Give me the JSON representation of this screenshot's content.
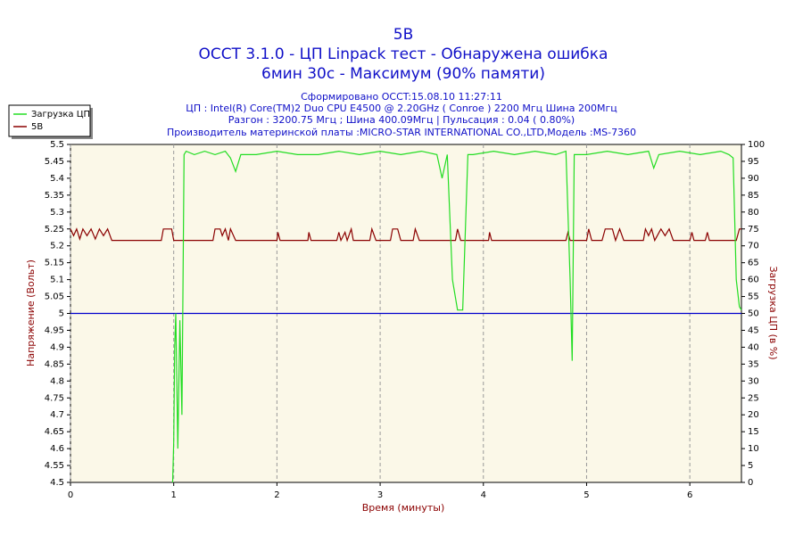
{
  "chart_data": {
    "type": "line",
    "title": "5В",
    "title_lines": [
      "OCCT 3.1.0 - ЦП Linpack тест - Обнаружена ошибка",
      "6мин 30с - Максимум (90% памяти)"
    ],
    "subtitle_lines": [
      "Сформировано OCCT:15.08.10 11:27:11",
      "ЦП : Intel(R) Core(TM)2 Duo CPU E4500 @ 2.20GHz ( Conroe ) 2200 Мгц Шина 200Мгц",
      "Разгон : 3200.75 Мгц ; Шина 400.09Мгц | Пульсация : 0.04 ( 0.80%)",
      "Производитель материнской платы :MICRO-STAR INTERNATIONAL CO.,LTD,Модель :MS-7360"
    ],
    "x_label": "Время (минуты)",
    "y_label": "Напряжение (Вольт)",
    "y2_label": "Загрузка ЦП (в %)",
    "xlim": [
      0,
      6.5
    ],
    "xticks": [
      0,
      1,
      2,
      3,
      4,
      5,
      6
    ],
    "ylim": [
      4.5,
      5.5
    ],
    "yticks": [
      4.5,
      4.55,
      4.6,
      4.65,
      4.7,
      4.75,
      4.8,
      4.85,
      4.9,
      4.95,
      5,
      5.05,
      5.1,
      5.15,
      5.2,
      5.25,
      5.3,
      5.35,
      5.4,
      5.45,
      5.5
    ],
    "y2lim": [
      0,
      100
    ],
    "y2ticks": [
      0,
      5,
      10,
      15,
      20,
      25,
      30,
      35,
      40,
      45,
      50,
      55,
      60,
      65,
      70,
      75,
      80,
      85,
      90,
      95,
      100
    ],
    "grid": "x",
    "legend": "top-left",
    "series": [
      {
        "name": "Загрузка ЦП",
        "color": "#22dd22",
        "axis": "y2",
        "x": [
          0.99,
          1.0,
          1.01,
          1.02,
          1.04,
          1.06,
          1.08,
          1.1,
          1.12,
          1.2,
          1.3,
          1.4,
          1.5,
          1.55,
          1.6,
          1.65,
          1.8,
          2.0,
          2.2,
          2.4,
          2.6,
          2.8,
          3.0,
          3.2,
          3.4,
          3.55,
          3.6,
          3.65,
          3.7,
          3.75,
          3.8,
          3.85,
          3.9,
          4.1,
          4.3,
          4.5,
          4.7,
          4.8,
          4.84,
          4.86,
          4.88,
          4.92,
          5.0,
          5.2,
          5.4,
          5.6,
          5.65,
          5.7,
          5.9,
          6.1,
          6.3,
          6.38,
          6.42,
          6.45,
          6.48,
          6.5
        ],
        "values": [
          0,
          12,
          40,
          50,
          10,
          48,
          20,
          97,
          98,
          97,
          98,
          97,
          98,
          96,
          92,
          97,
          97,
          98,
          97,
          97,
          98,
          97,
          98,
          97,
          98,
          97,
          90,
          97,
          60,
          51,
          51,
          97,
          97,
          98,
          97,
          98,
          97,
          98,
          60,
          36,
          97,
          97,
          97,
          98,
          97,
          98,
          93,
          97,
          98,
          97,
          98,
          97,
          96,
          60,
          52,
          51
        ]
      },
      {
        "name": "5В",
        "color": "#8b0000",
        "axis": "y",
        "x": [
          0,
          0.03,
          0.06,
          0.09,
          0.12,
          0.16,
          0.2,
          0.24,
          0.28,
          0.32,
          0.36,
          0.4,
          0.88,
          0.9,
          0.98,
          1.0,
          1.38,
          1.4,
          1.45,
          1.47,
          1.5,
          1.53,
          1.55,
          1.6,
          2.0,
          2.01,
          2.03,
          2.3,
          2.31,
          2.33,
          2.58,
          2.6,
          2.62,
          2.66,
          2.68,
          2.72,
          2.74,
          2.9,
          2.92,
          2.96,
          3.1,
          3.12,
          3.17,
          3.2,
          3.32,
          3.34,
          3.38,
          3.73,
          3.75,
          3.78,
          4.05,
          4.06,
          4.08,
          4.8,
          4.82,
          4.84,
          5.0,
          5.02,
          5.05,
          5.15,
          5.18,
          5.25,
          5.28,
          5.32,
          5.36,
          5.4,
          5.55,
          5.57,
          5.6,
          5.63,
          5.66,
          5.72,
          5.76,
          5.8,
          5.84,
          6.0,
          6.02,
          6.04,
          6.15,
          6.17,
          6.19,
          6.45,
          6.48,
          6.5
        ],
        "values": [
          5.25,
          5.23,
          5.25,
          5.22,
          5.25,
          5.23,
          5.25,
          5.22,
          5.25,
          5.23,
          5.25,
          5.216,
          5.216,
          5.25,
          5.25,
          5.216,
          5.216,
          5.25,
          5.25,
          5.23,
          5.25,
          5.216,
          5.25,
          5.216,
          5.216,
          5.24,
          5.216,
          5.216,
          5.24,
          5.216,
          5.216,
          5.24,
          5.216,
          5.24,
          5.216,
          5.25,
          5.216,
          5.216,
          5.25,
          5.216,
          5.216,
          5.25,
          5.25,
          5.216,
          5.216,
          5.25,
          5.216,
          5.216,
          5.25,
          5.216,
          5.216,
          5.24,
          5.216,
          5.216,
          5.24,
          5.216,
          5.216,
          5.25,
          5.216,
          5.216,
          5.25,
          5.25,
          5.216,
          5.25,
          5.216,
          5.216,
          5.216,
          5.25,
          5.23,
          5.25,
          5.216,
          5.25,
          5.23,
          5.25,
          5.216,
          5.216,
          5.24,
          5.216,
          5.216,
          5.24,
          5.216,
          5.216,
          5.25,
          5.25
        ]
      },
      {
        "color": "#0000cc",
        "axis": "y",
        "x": [
          0,
          6.5
        ],
        "values": [
          5,
          5
        ]
      }
    ]
  }
}
